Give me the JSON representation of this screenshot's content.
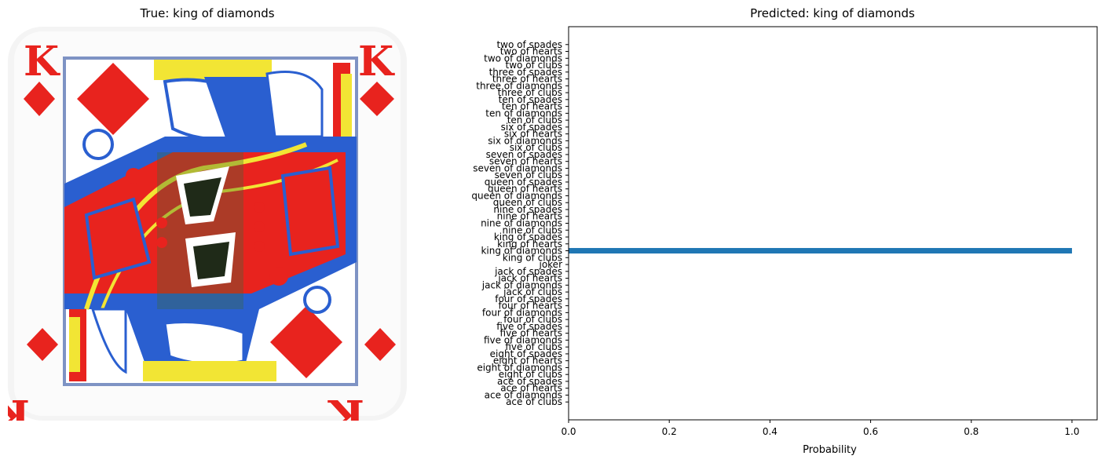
{
  "left_panel": {
    "title": "True: king of diamonds",
    "image": "king-of-diamonds-card",
    "card_colors": {
      "red": "#e8231e",
      "blue": "#2a5fd0",
      "yellow": "#f2e534",
      "border": "#7e93c4"
    }
  },
  "chart_data": {
    "type": "bar",
    "orientation": "horizontal",
    "title": "Predicted: king of diamonds",
    "xlabel": "Probability",
    "ylabel": "",
    "xlim": [
      0,
      1.05
    ],
    "xticks": [
      0.0,
      0.2,
      0.4,
      0.6,
      0.8,
      1.0
    ],
    "xtick_labels": [
      "0.0",
      "0.2",
      "0.4",
      "0.6",
      "0.8",
      "1.0"
    ],
    "bar_color": "#1f77b4",
    "grid": false,
    "categories": [
      "ace of clubs",
      "ace of diamonds",
      "ace of hearts",
      "ace of spades",
      "eight of clubs",
      "eight of diamonds",
      "eight of hearts",
      "eight of spades",
      "five of clubs",
      "five of diamonds",
      "five of hearts",
      "five of spades",
      "four of clubs",
      "four of diamonds",
      "four of hearts",
      "four of spades",
      "jack of clubs",
      "jack of diamonds",
      "jack of hearts",
      "jack of spades",
      "joker",
      "king of clubs",
      "king of diamonds",
      "king of hearts",
      "king of spades",
      "nine of clubs",
      "nine of diamonds",
      "nine of hearts",
      "nine of spades",
      "queen of clubs",
      "queen of diamonds",
      "queen of hearts",
      "queen of spades",
      "seven of clubs",
      "seven of diamonds",
      "seven of hearts",
      "seven of spades",
      "six of clubs",
      "six of diamonds",
      "six of hearts",
      "six of spades",
      "ten of clubs",
      "ten of diamonds",
      "ten of hearts",
      "ten of spades",
      "three of clubs",
      "three of diamonds",
      "three of hearts",
      "three of spades",
      "two of clubs",
      "two of diamonds",
      "two of hearts",
      "two of spades"
    ],
    "values": [
      0,
      0,
      0,
      0,
      0,
      0,
      0,
      0,
      0,
      0,
      0,
      0,
      0,
      0,
      0,
      0,
      0,
      0,
      0,
      0,
      0,
      0,
      1.0,
      0,
      0,
      0,
      0,
      0,
      0,
      0,
      0,
      0,
      0,
      0,
      0,
      0,
      0,
      0,
      0,
      0,
      0,
      0,
      0,
      0,
      0,
      0,
      0,
      0,
      0,
      0,
      0,
      0,
      0
    ]
  }
}
